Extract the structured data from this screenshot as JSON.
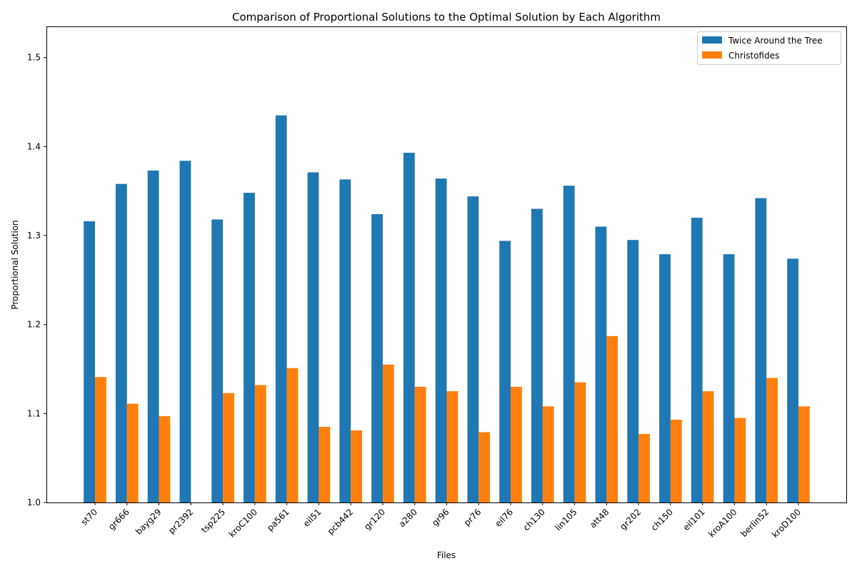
{
  "chart_data": {
    "type": "bar",
    "title": "Comparison of Proportional Solutions to the Optimal Solution by Each Algorithm",
    "xlabel": "Files",
    "ylabel": "Proportional Solution",
    "ylim": [
      1.0,
      1.535
    ],
    "yticks": [
      "1.0",
      "1.1",
      "1.2",
      "1.3",
      "1.4",
      "1.5"
    ],
    "grid": false,
    "legend_position": "top-right",
    "categories": [
      "st70",
      "gr666",
      "bayg29",
      "pr2392",
      "tsp225",
      "kroC100",
      "pa561",
      "eil51",
      "pcb442",
      "gr120",
      "a280",
      "gr96",
      "pr76",
      "eil76",
      "ch130",
      "lin105",
      "att48",
      "gr202",
      "ch150",
      "eil101",
      "kroA100",
      "berlin52",
      "kroD100"
    ],
    "series": [
      {
        "name": "Twice Around the Tree",
        "color": "#1f77b4",
        "values": [
          1.316,
          1.358,
          1.373,
          1.384,
          1.318,
          1.348,
          1.435,
          1.371,
          1.363,
          1.324,
          1.393,
          1.364,
          1.344,
          1.294,
          1.33,
          1.356,
          1.31,
          1.295,
          1.279,
          1.32,
          1.279,
          1.342,
          1.274
        ]
      },
      {
        "name": "Christofides",
        "color": "#ff7f0e",
        "values": [
          1.141,
          1.111,
          1.097,
          null,
          1.123,
          1.132,
          1.151,
          1.085,
          1.081,
          1.155,
          1.13,
          1.125,
          1.079,
          1.13,
          1.108,
          1.135,
          1.187,
          1.077,
          1.093,
          1.125,
          1.095,
          1.14,
          1.108
        ]
      }
    ]
  }
}
